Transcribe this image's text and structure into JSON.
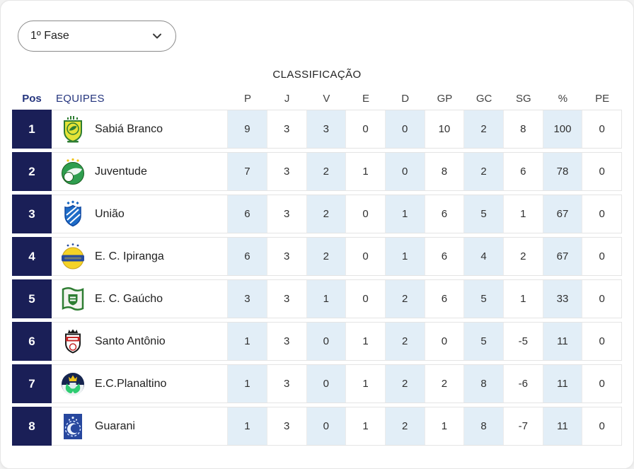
{
  "phase_selector": {
    "value": "1º Fase",
    "icon": "chevron-down-icon"
  },
  "table": {
    "title": "CLASSIFICAÇÃO",
    "pos_header": "Pos",
    "teams_header": "EQUIPES",
    "stat_columns": [
      "P",
      "J",
      "V",
      "E",
      "D",
      "GP",
      "GC",
      "SG",
      "%",
      "PE"
    ],
    "rows": [
      {
        "pos": "1",
        "name": "Sabiá Branco",
        "logo": "sabia-branco-crest",
        "stats": [
          "9",
          "3",
          "3",
          "0",
          "0",
          "10",
          "2",
          "8",
          "100",
          "0"
        ]
      },
      {
        "pos": "2",
        "name": "Juventude",
        "logo": "juventude-crest",
        "stats": [
          "7",
          "3",
          "2",
          "1",
          "0",
          "8",
          "2",
          "6",
          "78",
          "0"
        ]
      },
      {
        "pos": "3",
        "name": "União",
        "logo": "uniao-crest",
        "stats": [
          "6",
          "3",
          "2",
          "0",
          "1",
          "6",
          "5",
          "1",
          "67",
          "0"
        ]
      },
      {
        "pos": "4",
        "name": "E. C. Ipiranga",
        "logo": "ipiranga-crest",
        "stats": [
          "6",
          "3",
          "2",
          "0",
          "1",
          "6",
          "4",
          "2",
          "67",
          "0"
        ]
      },
      {
        "pos": "5",
        "name": "E. C. Gaúcho",
        "logo": "gaucho-crest",
        "stats": [
          "3",
          "3",
          "1",
          "0",
          "2",
          "6",
          "5",
          "1",
          "33",
          "0"
        ]
      },
      {
        "pos": "6",
        "name": "Santo Antônio",
        "logo": "santo-antonio-crest",
        "stats": [
          "1",
          "3",
          "0",
          "1",
          "2",
          "0",
          "5",
          "-5",
          "11",
          "0"
        ]
      },
      {
        "pos": "7",
        "name": "E.C.Planaltino",
        "logo": "planaltino-crest",
        "stats": [
          "1",
          "3",
          "0",
          "1",
          "2",
          "2",
          "8",
          "-6",
          "11",
          "0"
        ]
      },
      {
        "pos": "8",
        "name": "Guarani",
        "logo": "guarani-crest",
        "stats": [
          "1",
          "3",
          "0",
          "1",
          "2",
          "1",
          "8",
          "-7",
          "11",
          "0"
        ]
      }
    ]
  },
  "colors": {
    "badge-navy": "#1a1f57",
    "header-blue": "#25357e",
    "striped-cell": "#e2eef7"
  }
}
